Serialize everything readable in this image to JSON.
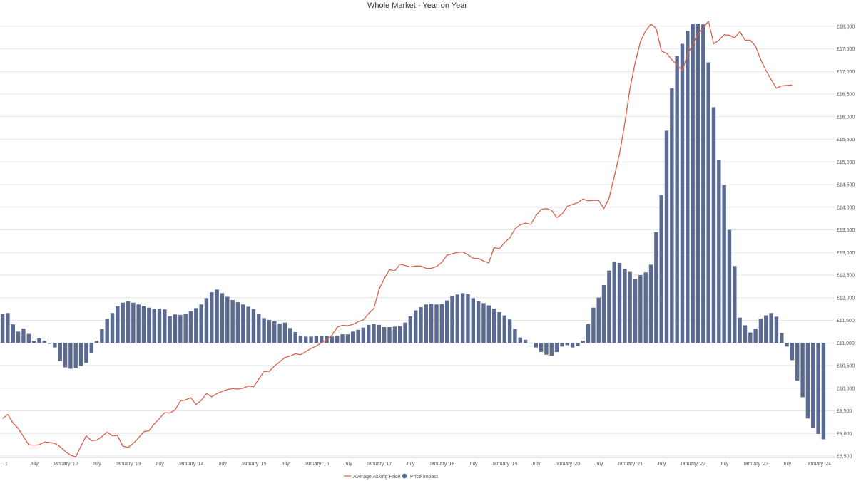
{
  "chart_data": {
    "type": "bar+line",
    "title": "Whole Market - Year on Year",
    "xlabel": "",
    "ylabel": "",
    "ylim": [
      8500,
      18250
    ],
    "y_ticks": [
      8500,
      9000,
      9500,
      10000,
      10500,
      11000,
      11500,
      12000,
      12500,
      13000,
      13500,
      14000,
      14500,
      15000,
      15500,
      16000,
      16500,
      17000,
      17500,
      18000
    ],
    "y_tick_labels": [
      "£8,500",
      "£9,000",
      "£9,500",
      "£10,000",
      "£10,500",
      "£11,000",
      "£11,500",
      "£12,000",
      "£12,500",
      "£13,000",
      "£13,500",
      "£14,000",
      "£14,500",
      "£15,000",
      "£15,500",
      "£16,000",
      "£16,500",
      "£17,000",
      "£17,500",
      "£18,000"
    ],
    "baseline": 11000,
    "x_ticks": [
      {
        "label": "11",
        "index": 0
      },
      {
        "label": "July",
        "index": 6
      },
      {
        "label": "January '12",
        "index": 12
      },
      {
        "label": "July",
        "index": 18
      },
      {
        "label": "January '13",
        "index": 24
      },
      {
        "label": "July",
        "index": 30
      },
      {
        "label": "January '14",
        "index": 36
      },
      {
        "label": "July",
        "index": 42
      },
      {
        "label": "January '15",
        "index": 48
      },
      {
        "label": "July",
        "index": 54
      },
      {
        "label": "January '16",
        "index": 60
      },
      {
        "label": "July",
        "index": 66
      },
      {
        "label": "January '17",
        "index": 72
      },
      {
        "label": "July",
        "index": 78
      },
      {
        "label": "January '18",
        "index": 84
      },
      {
        "label": "July",
        "index": 90
      },
      {
        "label": "January '19",
        "index": 96
      },
      {
        "label": "July",
        "index": 102
      },
      {
        "label": "January '20",
        "index": 108
      },
      {
        "label": "July",
        "index": 114
      },
      {
        "label": "January '21",
        "index": 120
      },
      {
        "label": "July",
        "index": 126
      },
      {
        "label": "January '22",
        "index": 132
      },
      {
        "label": "July",
        "index": 138
      },
      {
        "label": "January '23",
        "index": 144
      },
      {
        "label": "July",
        "index": 150
      },
      {
        "label": "January '24",
        "index": 156
      }
    ],
    "legend": {
      "placement": "bottom-center"
    },
    "series": [
      {
        "name": "Average Asking Price",
        "type": "line",
        "color": "#d9614c",
        "values": [
          9330,
          9420,
          9230,
          9110,
          8930,
          8750,
          8740,
          8750,
          8810,
          8800,
          8780,
          8710,
          8600,
          8520,
          8480,
          8720,
          8950,
          8840,
          8850,
          8930,
          9030,
          8950,
          8950,
          8720,
          8690,
          8780,
          8900,
          9040,
          9060,
          9210,
          9330,
          9460,
          9450,
          9520,
          9720,
          9740,
          9790,
          9640,
          9730,
          9880,
          9810,
          9880,
          9930,
          9970,
          9990,
          9980,
          10000,
          10050,
          10030,
          10200,
          10370,
          10370,
          10490,
          10580,
          10680,
          10710,
          10760,
          10740,
          10810,
          10880,
          10930,
          11010,
          11070,
          11170,
          11350,
          11390,
          11380,
          11410,
          11470,
          11510,
          11650,
          11760,
          12180,
          12420,
          12620,
          12590,
          12740,
          12710,
          12680,
          12700,
          12700,
          12650,
          12650,
          12690,
          12780,
          12940,
          12970,
          13000,
          13010,
          12950,
          12870,
          12870,
          12810,
          12770,
          13110,
          13080,
          13220,
          13320,
          13520,
          13610,
          13650,
          13620,
          13810,
          13950,
          13970,
          13930,
          13770,
          13850,
          14020,
          14060,
          14100,
          14180,
          14140,
          14150,
          14150,
          13970,
          14200,
          14680,
          15180,
          15850,
          16630,
          17200,
          17660,
          17900,
          18050,
          17950,
          17450,
          17400,
          17260,
          17150,
          17010,
          17380,
          17590,
          17810,
          17970,
          18110,
          17610,
          17690,
          17810,
          17800,
          17740,
          17880,
          17690,
          17690,
          17560,
          17260,
          17020,
          16820,
          16630,
          16680,
          16690,
          16700
        ]
      },
      {
        "name": "Price Impact",
        "type": "bar",
        "color": "#5a6a91",
        "values": [
          11640,
          11660,
          11410,
          11250,
          11320,
          11200,
          11050,
          11100,
          11050,
          10980,
          10900,
          10600,
          10460,
          10430,
          10450,
          10490,
          10560,
          10770,
          11050,
          11310,
          11530,
          11660,
          11810,
          11890,
          11920,
          11890,
          11850,
          11810,
          11780,
          11750,
          11760,
          11740,
          11590,
          11630,
          11620,
          11650,
          11700,
          11770,
          11850,
          11990,
          12120,
          12180,
          12100,
          12020,
          11950,
          11900,
          11850,
          11800,
          11750,
          11650,
          11550,
          11510,
          11480,
          11430,
          11450,
          11330,
          11240,
          11160,
          11140,
          11140,
          11150,
          11150,
          11150,
          11140,
          11160,
          11190,
          11190,
          11250,
          11290,
          11340,
          11400,
          11420,
          11400,
          11350,
          11350,
          11360,
          11370,
          11450,
          11590,
          11720,
          11790,
          11850,
          11870,
          11850,
          11860,
          11940,
          12040,
          12070,
          12100,
          12080,
          11990,
          11920,
          11880,
          11830,
          11760,
          11680,
          11610,
          11520,
          11310,
          11120,
          11070,
          11000,
          10900,
          10800,
          10740,
          10720,
          10800,
          10920,
          10950,
          10900,
          10930,
          11050,
          11420,
          11780,
          12000,
          12280,
          12600,
          12800,
          12770,
          12640,
          12570,
          12410,
          12500,
          12560,
          12730,
          13450,
          14270,
          15690,
          16630,
          17340,
          17610,
          17900,
          18050,
          18060,
          18040,
          17200,
          16210,
          15050,
          14490,
          13500,
          12700,
          11560,
          11390,
          11230,
          11320,
          11540,
          11610,
          11660,
          11580,
          11220,
          10920,
          10620,
          10170,
          9800,
          9330,
          9120,
          8990,
          8870
        ]
      }
    ]
  }
}
